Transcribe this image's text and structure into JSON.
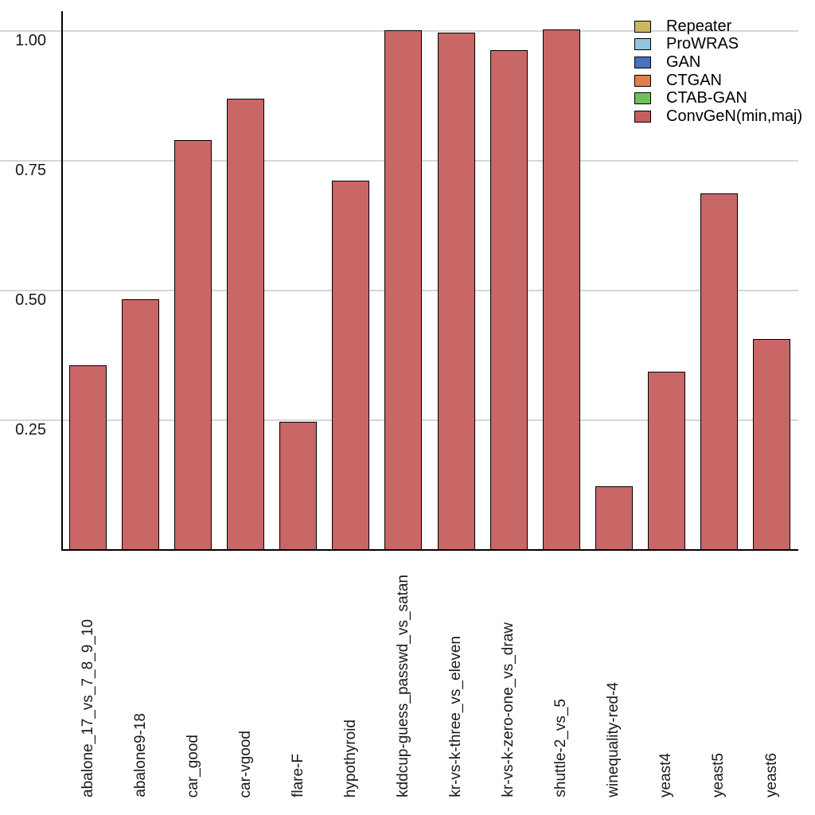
{
  "chart_data": {
    "type": "bar",
    "title": "",
    "xlabel": "",
    "ylabel": "",
    "ylim": [
      0,
      1.0
    ],
    "y_ticks": [
      0.25,
      0.5,
      0.75,
      1.0
    ],
    "y_tick_labels": [
      "0.25",
      "0.50",
      "0.75",
      "1.00"
    ],
    "grid": "horizontal",
    "legend_position": "top-right",
    "categories": [
      "abalone_17_vs_7_8_9_10",
      "abalone9-18",
      "car_good",
      "car-vgood",
      "flare-F",
      "hypothyroid",
      "kddcup-guess_passwd_vs_satan",
      "kr-vs-k-three_vs_eleven",
      "kr-vs-k-zero-one_vs_draw",
      "shuttle-2_vs_5",
      "winequality-red-4",
      "yeast4",
      "yeast5",
      "yeast6"
    ],
    "series": [
      {
        "name": "ConvGeN(min,maj)",
        "color": "#C96666",
        "edge_color": "#000000",
        "values": [
          0.356,
          0.483,
          0.79,
          0.87,
          0.247,
          0.712,
          1.002,
          0.997,
          0.963,
          1.003,
          0.123,
          0.344,
          0.687,
          0.406
        ]
      }
    ]
  },
  "legend": {
    "entries": [
      {
        "label": "Repeater",
        "color": "#CBB862"
      },
      {
        "label": "ProWRAS",
        "color": "#92C5E0"
      },
      {
        "label": "GAN",
        "color": "#4A6FC4"
      },
      {
        "label": "CTGAN",
        "color": "#E08048"
      },
      {
        "label": "CTAB-GAN",
        "color": "#6EC156"
      },
      {
        "label": "ConvGeN(min,maj)",
        "color": "#C85C5C"
      }
    ]
  },
  "colors": {
    "background": "#FFFFFF",
    "gridline": "#D6D6D6",
    "axis": "#000000",
    "tick_text": "#191919"
  }
}
